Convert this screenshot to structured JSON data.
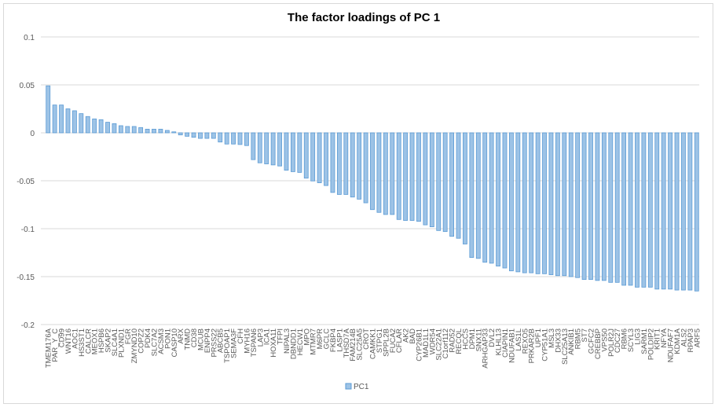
{
  "chart_data": {
    "type": "bar",
    "title": "The factor loadings of PC 1",
    "xlabel": "",
    "ylabel": "",
    "ylim": [
      -0.2,
      0.1
    ],
    "yticks": [
      0.1,
      0.05,
      0,
      -0.05,
      -0.1,
      -0.15,
      -0.2
    ],
    "ytick_labels": [
      "0.1",
      "0.05",
      "0",
      "-0.05",
      "-0.1",
      "-0.15",
      "-0.2"
    ],
    "grid": true,
    "legend": "bottom",
    "colors": {
      "bar_fill": "#9dc3e6",
      "bar_stroke": "#5b9bd5",
      "grid": "#d9d9d9"
    },
    "categories": [
      "TMEM176A",
      "PAR_Y_C",
      "CD99",
      "WNT16",
      "AOC1",
      "HS3ST1",
      "CALCR",
      "MEOX1",
      "HSPB6",
      "SKAP2",
      "SLC4A1",
      "PLXND1",
      "FGR",
      "ZMYND10",
      "COPZ2",
      "PDK4",
      "SLC7A2",
      "ACSM3",
      "PON1",
      "CASP10",
      "ARX",
      "TNMD",
      "CD38",
      "MCUB",
      "ENPP4",
      "PRSS22",
      "ABCB5",
      "TSPOAP1",
      "SEMA3F",
      "CFH",
      "MYH16",
      "TSPAN6",
      "LAP3",
      "ICA1",
      "HOXA11",
      "TFPI",
      "NIPAL3",
      "DBNDD1",
      "HECW1",
      "MPO",
      "MTMR7",
      "M6PR",
      "GCLC",
      "FKBP4",
      "LASP1",
      "THSD7A",
      "FAM214B",
      "SLC25A5",
      "CROT",
      "CAMKK1",
      "STPG1",
      "SPPL2B",
      "FUCA2",
      "CFLAR",
      "AK2",
      "BAD",
      "CYP26B1",
      "MAD1L1",
      "WDR54",
      "SLC22A1",
      "C1orf112",
      "RAD52",
      "RECQL",
      "HCCS",
      "DPM1",
      "SNX11",
      "ARHGAP33",
      "DVL2",
      "KLHL13",
      "CIAPIN1",
      "NDUFAB1",
      "LAS1L",
      "REXO5",
      "PRKAR2B",
      "UPF1",
      "CYP51A1",
      "MSL3",
      "DHX33",
      "SLC25A13",
      "ANKIB1",
      "RBM5",
      "ST7",
      "GCFC2",
      "CREBBP",
      "VPS50",
      "POLR2J",
      "CDC27",
      "RBM6",
      "SCYL3",
      "LIG3",
      "SARM1",
      "POLDIP2",
      "KRIT1",
      "NFYA",
      "NDUFAF7",
      "KDM1A",
      "ALS2",
      "RPAP3",
      "ARF5"
    ],
    "series": [
      {
        "name": "PC1",
        "values": [
          0.049,
          0.029,
          0.029,
          0.025,
          0.023,
          0.02,
          0.017,
          0.0145,
          0.0137,
          0.011,
          0.0096,
          0.0074,
          0.0066,
          0.0066,
          0.0055,
          0.0038,
          0.0038,
          0.0038,
          0.0025,
          0.001,
          -0.0022,
          -0.0036,
          -0.0047,
          -0.0058,
          -0.0058,
          -0.0058,
          -0.0096,
          -0.0117,
          -0.0117,
          -0.0122,
          -0.0133,
          -0.028,
          -0.0313,
          -0.0324,
          -0.0335,
          -0.0346,
          -0.039,
          -0.0405,
          -0.0413,
          -0.0473,
          -0.0502,
          -0.0521,
          -0.055,
          -0.0622,
          -0.0643,
          -0.0643,
          -0.067,
          -0.0692,
          -0.073,
          -0.0801,
          -0.083,
          -0.0852,
          -0.0852,
          -0.0904,
          -0.0914,
          -0.0914,
          -0.0923,
          -0.096,
          -0.098,
          -0.1019,
          -0.103,
          -0.108,
          -0.11,
          -0.116,
          -0.13,
          -0.131,
          -0.135,
          -0.136,
          -0.139,
          -0.141,
          -0.144,
          -0.145,
          -0.146,
          -0.146,
          -0.147,
          -0.147,
          -0.148,
          -0.149,
          -0.149,
          -0.15,
          -0.151,
          -0.153,
          -0.153,
          -0.154,
          -0.154,
          -0.156,
          -0.156,
          -0.159,
          -0.159,
          -0.161,
          -0.161,
          -0.161,
          -0.163,
          -0.163,
          -0.163,
          -0.164,
          -0.164,
          -0.164,
          -0.165
        ]
      }
    ]
  }
}
